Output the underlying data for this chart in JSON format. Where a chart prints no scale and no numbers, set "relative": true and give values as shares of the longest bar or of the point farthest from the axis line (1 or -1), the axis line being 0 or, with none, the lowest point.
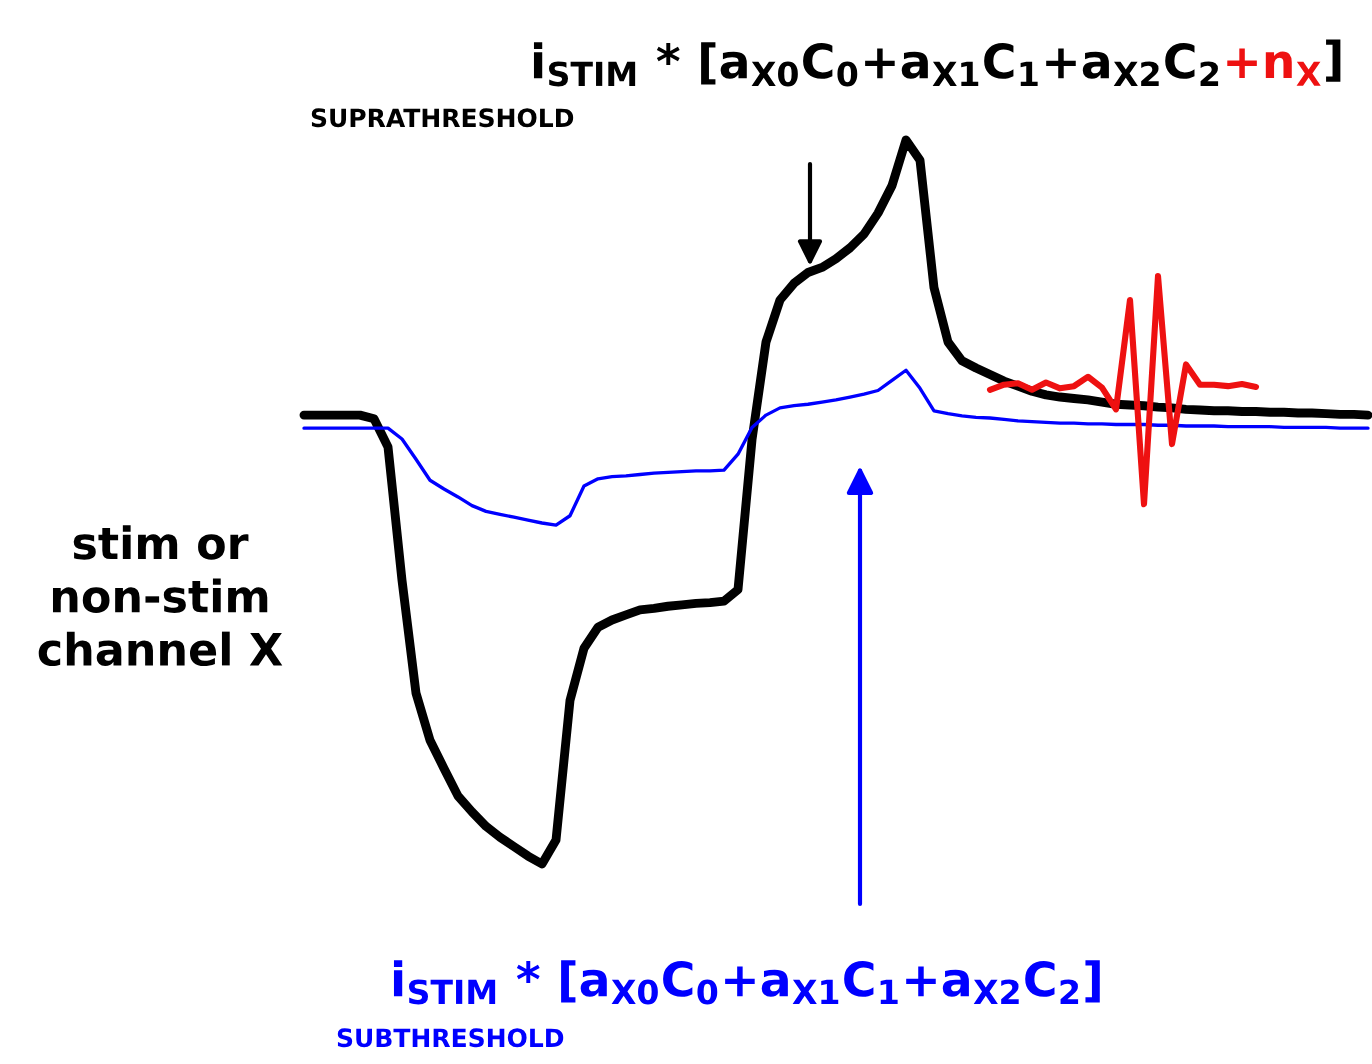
{
  "chart_data": {
    "type": "line",
    "relative": true,
    "tick_labels": false,
    "categories": [
      null,
      null,
      null,
      null,
      null,
      null,
      null,
      null,
      null,
      null,
      null,
      null,
      null,
      null,
      null,
      null,
      null,
      null,
      null,
      null,
      null,
      null,
      null,
      null,
      null,
      null,
      null,
      null,
      null,
      null,
      null,
      null,
      null,
      null,
      null,
      null,
      null,
      null,
      null,
      null,
      null,
      null,
      null,
      null,
      null,
      null,
      null,
      null,
      null,
      null,
      null,
      null,
      null,
      null,
      null,
      null,
      null,
      null,
      null,
      null,
      null,
      null,
      null,
      null,
      null,
      null,
      null,
      null,
      null,
      null,
      null,
      null,
      null,
      null,
      null,
      null,
      null
    ],
    "series": [
      {
        "color": "#000000",
        "values": [
          0.62,
          0.62,
          0.62,
          0.62,
          0.62,
          0.615,
          0.576,
          0.392,
          0.236,
          0.171,
          0.132,
          0.094,
          0.072,
          0.052,
          0.037,
          0.024,
          0.011,
          0,
          0.033,
          0.226,
          0.298,
          0.327,
          0.337,
          0.344,
          0.351,
          0.353,
          0.356,
          0.358,
          0.36,
          0.361,
          0.363,
          0.379,
          0.586,
          0.721,
          0.779,
          0.802,
          0.817,
          0.824,
          0.836,
          0.851,
          0.87,
          0.899,
          0.937,
          1,
          0.972,
          0.796,
          0.721,
          0.695,
          0.685,
          0.676,
          0.667,
          0.66,
          0.653,
          0.648,
          0.645,
          0.643,
          0.641,
          0.638,
          0.635,
          0.634,
          0.633,
          0.631,
          0.63,
          0.628,
          0.627,
          0.626,
          0.626,
          0.625,
          0.625,
          0.624,
          0.624,
          0.623,
          0.623,
          0.622,
          0.621,
          0.621,
          0.62
        ]
      },
      {
        "color": "#0000ff",
        "values": [
          0.602,
          0.602,
          0.602,
          0.602,
          0.602,
          0.602,
          0.602,
          0.587,
          0.559,
          0.53,
          0.518,
          0.507,
          0.495,
          0.487,
          0.483,
          0.479,
          0.475,
          0.471,
          0.468,
          0.481,
          0.522,
          0.532,
          0.535,
          0.536,
          0.538,
          0.54,
          0.541,
          0.542,
          0.543,
          0.543,
          0.544,
          0.566,
          0.603,
          0.62,
          0.63,
          0.633,
          0.635,
          0.638,
          0.641,
          0.645,
          0.649,
          0.654,
          0.668,
          0.682,
          0.657,
          0.626,
          0.622,
          0.619,
          0.617,
          0.616,
          0.614,
          0.612,
          0.611,
          0.61,
          0.609,
          0.609,
          0.608,
          0.608,
          0.607,
          0.607,
          0.607,
          0.606,
          0.606,
          0.605,
          0.605,
          0.605,
          0.604,
          0.604,
          0.604,
          0.604,
          0.603,
          0.603,
          0.603,
          0.603,
          0.602,
          0.602,
          0.602
        ]
      },
      {
        "color": "#ee1111",
        "values": [
          null,
          null,
          null,
          null,
          null,
          null,
          null,
          null,
          null,
          null,
          null,
          null,
          null,
          null,
          null,
          null,
          null,
          null,
          null,
          null,
          null,
          null,
          null,
          null,
          null,
          null,
          null,
          null,
          null,
          null,
          null,
          null,
          null,
          null,
          null,
          null,
          null,
          null,
          null,
          null,
          null,
          null,
          null,
          null,
          null,
          null,
          null,
          null,
          null,
          0.655,
          0.662,
          0.664,
          0.655,
          0.665,
          0.657,
          0.66,
          0.673,
          0.658,
          0.628,
          0.779,
          0.497,
          0.812,
          0.58,
          0.69,
          0.662,
          0.662,
          0.66,
          0.663,
          0.659,
          null,
          null,
          null,
          null,
          null,
          null,
          null,
          null
        ]
      }
    ],
    "annotations": [
      "i$_{STIM}$ * [a$_{X0}$C$_{0}$+a$_{X1}$C$_{1}$+a$_{X2}$C$_{2}$",
      "+n$_{X}$",
      "]",
      "SUPRATHRESHOLD",
      "i$_{STIM}$ * [a$_{X0}$C$_{0}$+a$_{X1}$C$_{1}$+a$_{X2}$C$_{2}$]",
      "SUBTHRESHOLD",
      "stim or\nnon-stim\nchannel X"
    ]
  }
}
